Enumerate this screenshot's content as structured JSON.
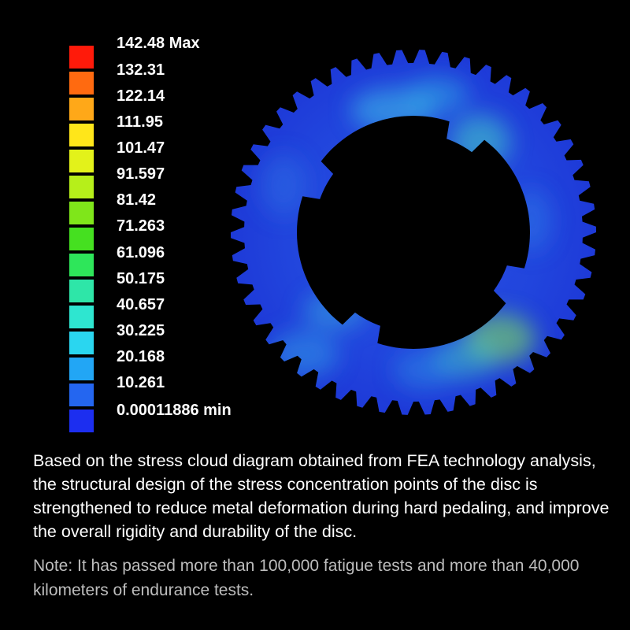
{
  "legend": {
    "labels": [
      "142.48 Max",
      "132.31",
      "122.14",
      "111.95",
      "101.47",
      "91.597",
      "81.42",
      "71.263",
      "61.096",
      "50.175",
      "40.657",
      "30.225",
      "20.168",
      "10.261",
      "0.00011886 min"
    ],
    "colors": [
      "#ff1a0a",
      "#ff6a10",
      "#ffa818",
      "#ffe61a",
      "#e3f21a",
      "#b6ef1a",
      "#7fe61a",
      "#45e020",
      "#2ee65a",
      "#2ee6a8",
      "#2ee6d0",
      "#2ad6f0",
      "#22a6f5",
      "#2466f0",
      "#1c2ef0"
    ]
  },
  "description": "Based on the stress cloud diagram obtained from FEA technology analysis, the structural design of the stress concentration points of the disc is strengthened to reduce metal deformation during hard pedaling, and improve the overall rigidity and durability of the disc.",
  "note": "Note: It has passed more than 100,000 fatigue tests and more than 40,000 kilometers of endurance tests."
}
